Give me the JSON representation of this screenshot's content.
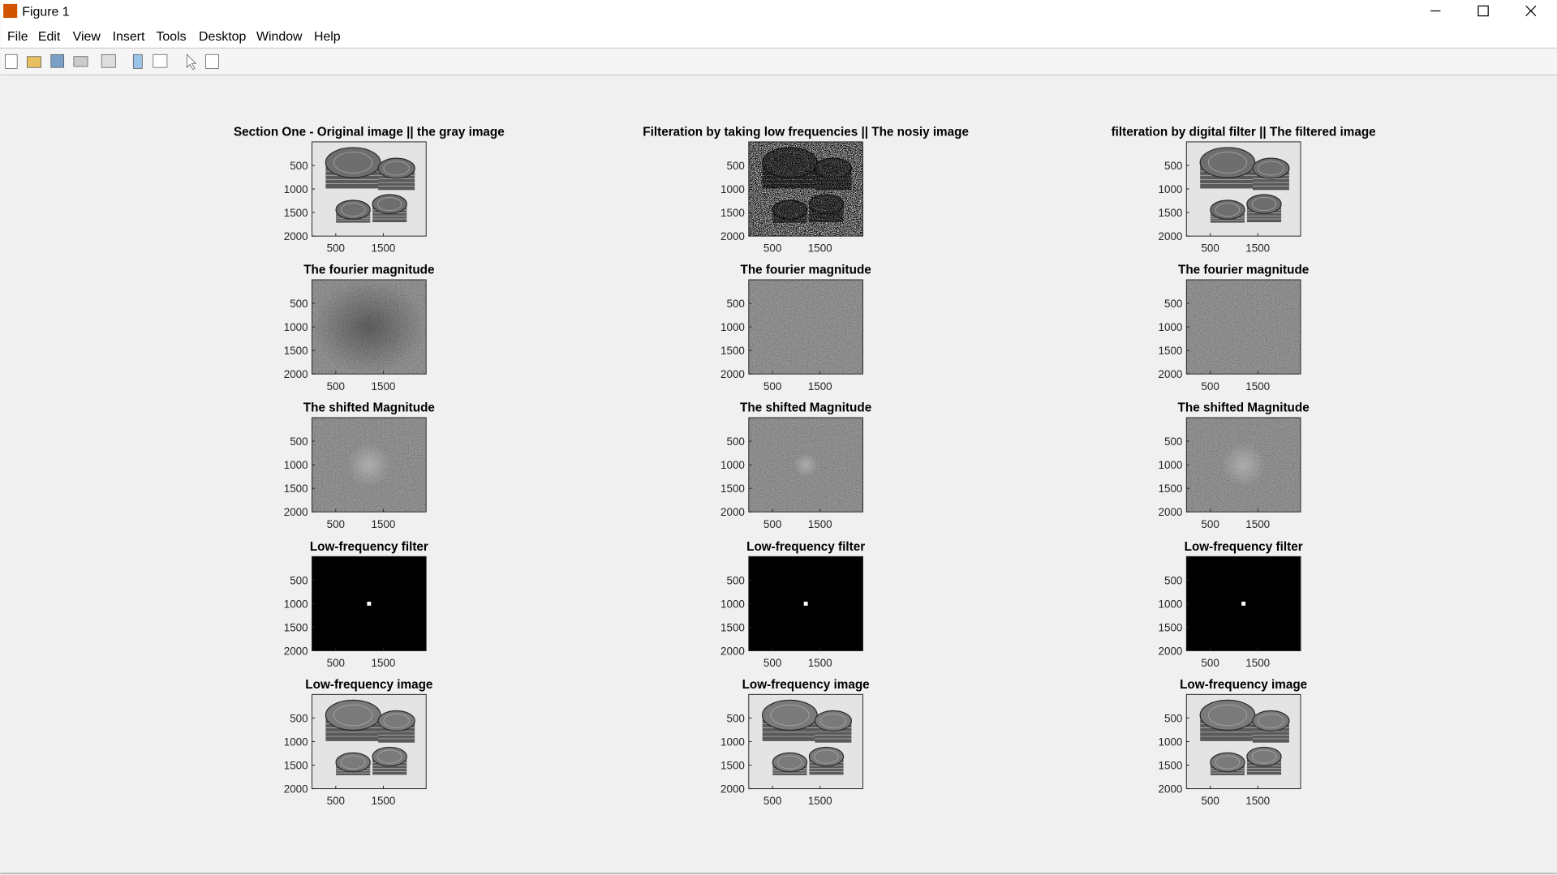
{
  "window": {
    "title": "Figure 1"
  },
  "menu": [
    "File",
    "Edit",
    "View",
    "Insert",
    "Tools",
    "Desktop",
    "Window",
    "Help"
  ],
  "chart_data": [
    {
      "type": "image",
      "title": "Section One - Original image || the gray image",
      "xlim": [
        0,
        2400
      ],
      "ylim": [
        0,
        2000
      ],
      "xticks": [
        500,
        1500
      ],
      "yticks": [
        500,
        1000,
        1500,
        2000
      ]
    },
    {
      "type": "image",
      "title": "Filteration by taking low frequencies || The nosiy image",
      "xlim": [
        0,
        2400
      ],
      "ylim": [
        0,
        2000
      ],
      "xticks": [
        500,
        1500
      ],
      "yticks": [
        500,
        1000,
        1500,
        2000
      ]
    },
    {
      "type": "image",
      "title": "filteration by digital filter || The filtered image",
      "xlim": [
        0,
        2400
      ],
      "ylim": [
        0,
        2000
      ],
      "xticks": [
        500,
        1500
      ],
      "yticks": [
        500,
        1000,
        1500,
        2000
      ]
    },
    {
      "type": "image",
      "title": "The fourier magnitude",
      "xlim": [
        0,
        2400
      ],
      "ylim": [
        0,
        2000
      ],
      "xticks": [
        500,
        1500
      ],
      "yticks": [
        500,
        1000,
        1500,
        2000
      ]
    },
    {
      "type": "image",
      "title": "The fourier magnitude",
      "xlim": [
        0,
        2400
      ],
      "ylim": [
        0,
        2000
      ],
      "xticks": [
        500,
        1500
      ],
      "yticks": [
        500,
        1000,
        1500,
        2000
      ]
    },
    {
      "type": "image",
      "title": "The fourier magnitude",
      "xlim": [
        0,
        2400
      ],
      "ylim": [
        0,
        2000
      ],
      "xticks": [
        500,
        1500
      ],
      "yticks": [
        500,
        1000,
        1500,
        2000
      ]
    },
    {
      "type": "image",
      "title": "The shifted Magnitude",
      "xlim": [
        0,
        2400
      ],
      "ylim": [
        0,
        2000
      ],
      "xticks": [
        500,
        1500
      ],
      "yticks": [
        500,
        1000,
        1500,
        2000
      ]
    },
    {
      "type": "image",
      "title": "The shifted Magnitude",
      "xlim": [
        0,
        2400
      ],
      "ylim": [
        0,
        2000
      ],
      "xticks": [
        500,
        1500
      ],
      "yticks": [
        500,
        1000,
        1500,
        2000
      ]
    },
    {
      "type": "image",
      "title": "The shifted Magnitude",
      "xlim": [
        0,
        2400
      ],
      "ylim": [
        0,
        2000
      ],
      "xticks": [
        500,
        1500
      ],
      "yticks": [
        500,
        1000,
        1500,
        2000
      ]
    },
    {
      "type": "image",
      "title": "Low-frequency filter",
      "xlim": [
        0,
        2400
      ],
      "ylim": [
        0,
        2000
      ],
      "xticks": [
        500,
        1500
      ],
      "yticks": [
        500,
        1000,
        1500,
        2000
      ]
    },
    {
      "type": "image",
      "title": "Low-frequency filter",
      "xlim": [
        0,
        2400
      ],
      "ylim": [
        0,
        2000
      ],
      "xticks": [
        500,
        1500
      ],
      "yticks": [
        500,
        1000,
        1500,
        2000
      ]
    },
    {
      "type": "image",
      "title": "Low-frequency filter",
      "xlim": [
        0,
        2400
      ],
      "ylim": [
        0,
        2000
      ],
      "xticks": [
        500,
        1500
      ],
      "yticks": [
        500,
        1000,
        1500,
        2000
      ]
    },
    {
      "type": "image",
      "title": "Low-frequency image",
      "xlim": [
        0,
        2400
      ],
      "ylim": [
        0,
        2000
      ],
      "xticks": [
        500,
        1500
      ],
      "yticks": [
        500,
        1000,
        1500,
        2000
      ]
    },
    {
      "type": "image",
      "title": "Low-frequency image",
      "xlim": [
        0,
        2400
      ],
      "ylim": [
        0,
        2000
      ],
      "xticks": [
        500,
        1500
      ],
      "yticks": [
        500,
        1000,
        1500,
        2000
      ]
    },
    {
      "type": "image",
      "title": "Low-frequency image",
      "xlim": [
        0,
        2400
      ],
      "ylim": [
        0,
        2000
      ],
      "xticks": [
        500,
        1500
      ],
      "yticks": [
        500,
        1000,
        1500,
        2000
      ]
    }
  ]
}
